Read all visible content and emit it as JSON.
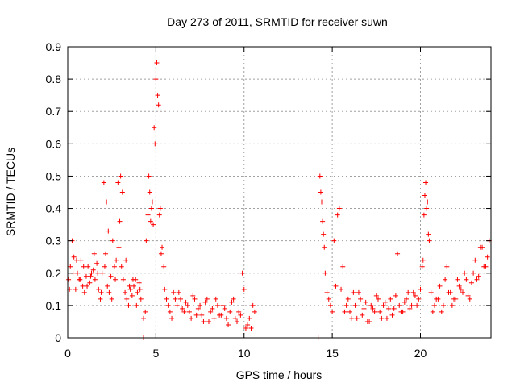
{
  "chart_data": {
    "type": "scatter",
    "title": "Day 273 of 2011, SRMTID for receiver suwn",
    "xlabel": "GPS time / hours",
    "ylabel": "SRMTID / TECUs",
    "xlim": [
      0,
      24
    ],
    "ylim": [
      0,
      0.9
    ],
    "xticks": [
      "0",
      "5",
      "10",
      "15",
      "20"
    ],
    "xtick_values": [
      0,
      5,
      10,
      15,
      20
    ],
    "yticks": [
      "0",
      "0.1",
      "0.2",
      "0.3",
      "0.4",
      "0.5",
      "0.6",
      "0.7",
      "0.8",
      "0.9"
    ],
    "ytick_values": [
      0,
      0.1,
      0.2,
      0.3,
      0.4,
      0.5,
      0.6,
      0.7,
      0.8,
      0.9
    ],
    "grid": true,
    "marker": "+",
    "series": [
      {
        "name": "suwn",
        "color": "#ff0000",
        "x": [
          0.05,
          0.15,
          0.25,
          0.35,
          0.45,
          0.55,
          0.65,
          0.75,
          0.85,
          0.95,
          1.05,
          1.15,
          1.25,
          1.35,
          1.45,
          1.55,
          1.65,
          1.75,
          1.85,
          1.95,
          2.05,
          2.15,
          2.25,
          2.35,
          2.45,
          2.55,
          2.65,
          2.75,
          2.85,
          2.95,
          3.05,
          3.15,
          3.25,
          3.35,
          3.45,
          3.55,
          3.65,
          3.75,
          3.85,
          3.95,
          4.05,
          4.15,
          4.3,
          4.45,
          4.55,
          4.65,
          4.75,
          4.85,
          4.95,
          5.05,
          5.15,
          5.25,
          5.35,
          5.45,
          5.6,
          5.8,
          6.0,
          6.2,
          6.4,
          6.6,
          6.8,
          7.0,
          7.2,
          7.4,
          7.6,
          7.8,
          8.0,
          8.2,
          8.4,
          8.6,
          8.8,
          9.0,
          9.2,
          9.4,
          9.6,
          9.8,
          10.0,
          10.2,
          10.4,
          10.6,
          14.3,
          14.4,
          14.5,
          14.6,
          14.8,
          15.0,
          15.2,
          15.4,
          15.6,
          15.8,
          16.0,
          16.2,
          16.4,
          16.6,
          16.8,
          17.0,
          17.2,
          17.4,
          17.6,
          17.8,
          18.0,
          18.2,
          18.4,
          18.6,
          18.8,
          19.0,
          19.2,
          19.4,
          19.6,
          19.8,
          20.0,
          20.1,
          20.2,
          20.3,
          20.4,
          20.5,
          20.6,
          20.8,
          21.0,
          21.2,
          21.4,
          21.6,
          21.8,
          22.0,
          22.2,
          22.4,
          22.6,
          22.8,
          23.0,
          23.2,
          23.4,
          23.6,
          23.8,
          0.1,
          0.3,
          0.5,
          0.7,
          0.9,
          1.1,
          1.3,
          1.5,
          1.7,
          1.9,
          2.1,
          2.2,
          2.3,
          2.5,
          2.7,
          2.9,
          3.0,
          3.1,
          3.3,
          3.5,
          3.7,
          3.9,
          4.1,
          4.4,
          4.6,
          4.7,
          4.8,
          4.9,
          5.0,
          5.1,
          5.2,
          5.3,
          5.5,
          5.7,
          5.9,
          6.1,
          6.3,
          6.5,
          6.7,
          6.9,
          7.1,
          7.3,
          7.5,
          7.7,
          7.9,
          8.1,
          8.3,
          8.5,
          8.7,
          8.9,
          9.1,
          9.3,
          9.5,
          9.7,
          9.9,
          10.1,
          10.3,
          10.5,
          14.35,
          14.45,
          14.55,
          14.7,
          14.9,
          15.1,
          15.3,
          15.5,
          15.7,
          15.9,
          16.1,
          16.3,
          16.5,
          16.7,
          16.9,
          17.1,
          17.3,
          17.5,
          17.7,
          17.9,
          18.1,
          18.3,
          18.5,
          18.7,
          18.9,
          19.1,
          19.3,
          19.5,
          19.7,
          19.9,
          20.15,
          20.25,
          20.35,
          20.45,
          20.7,
          20.9,
          21.1,
          21.3,
          21.5,
          21.7,
          21.9,
          22.1,
          22.3,
          22.5,
          22.7,
          22.9,
          23.1,
          23.3,
          23.5,
          23.7,
          23.9,
          4.3,
          14.2
        ],
        "y": [
          0.18,
          0.22,
          0.3,
          0.25,
          0.15,
          0.2,
          0.18,
          0.24,
          0.16,
          0.14,
          0.19,
          0.22,
          0.17,
          0.2,
          0.21,
          0.18,
          0.23,
          0.15,
          0.12,
          0.2,
          0.48,
          0.26,
          0.16,
          0.14,
          0.19,
          0.3,
          0.22,
          0.24,
          0.48,
          0.36,
          0.22,
          0.18,
          0.14,
          0.12,
          0.1,
          0.15,
          0.13,
          0.16,
          0.18,
          0.14,
          0.17,
          0.12,
          0.06,
          0.3,
          0.38,
          0.45,
          0.4,
          0.35,
          0.6,
          0.85,
          0.72,
          0.4,
          0.28,
          0.22,
          0.12,
          0.08,
          0.14,
          0.1,
          0.12,
          0.08,
          0.1,
          0.06,
          0.12,
          0.09,
          0.07,
          0.11,
          0.05,
          0.09,
          0.12,
          0.07,
          0.1,
          0.06,
          0.08,
          0.12,
          0.05,
          0.07,
          0.15,
          0.04,
          0.03,
          0.08,
          0.5,
          0.42,
          0.32,
          0.2,
          0.12,
          0.08,
          0.16,
          0.4,
          0.22,
          0.1,
          0.08,
          0.14,
          0.06,
          0.12,
          0.09,
          0.05,
          0.1,
          0.08,
          0.12,
          0.06,
          0.11,
          0.09,
          0.07,
          0.13,
          0.1,
          0.08,
          0.12,
          0.09,
          0.14,
          0.1,
          0.15,
          0.22,
          0.38,
          0.48,
          0.42,
          0.3,
          0.14,
          0.1,
          0.12,
          0.08,
          0.18,
          0.14,
          0.1,
          0.12,
          0.16,
          0.14,
          0.18,
          0.12,
          0.2,
          0.18,
          0.28,
          0.22,
          0.25,
          0.15,
          0.2,
          0.24,
          0.18,
          0.22,
          0.16,
          0.19,
          0.26,
          0.2,
          0.14,
          0.22,
          0.42,
          0.33,
          0.12,
          0.18,
          0.28,
          0.5,
          0.45,
          0.24,
          0.16,
          0.18,
          0.1,
          0.15,
          0.08,
          0.5,
          0.36,
          0.42,
          0.65,
          0.8,
          0.75,
          0.38,
          0.26,
          0.15,
          0.1,
          0.06,
          0.12,
          0.14,
          0.09,
          0.11,
          0.08,
          0.13,
          0.07,
          0.1,
          0.05,
          0.12,
          0.08,
          0.06,
          0.1,
          0.07,
          0.09,
          0.04,
          0.11,
          0.06,
          0.08,
          0.2,
          0.03,
          0.06,
          0.1,
          0.45,
          0.36,
          0.28,
          0.14,
          0.1,
          0.3,
          0.38,
          0.15,
          0.08,
          0.12,
          0.06,
          0.1,
          0.14,
          0.07,
          0.11,
          0.05,
          0.09,
          0.13,
          0.08,
          0.1,
          0.06,
          0.12,
          0.09,
          0.26,
          0.08,
          0.11,
          0.14,
          0.1,
          0.13,
          0.12,
          0.24,
          0.44,
          0.4,
          0.32,
          0.08,
          0.12,
          0.16,
          0.1,
          0.22,
          0.14,
          0.12,
          0.18,
          0.15,
          0.2,
          0.13,
          0.17,
          0.24,
          0.19,
          0.28,
          0.22,
          0.3,
          0.0,
          0.0
        ]
      }
    ]
  }
}
